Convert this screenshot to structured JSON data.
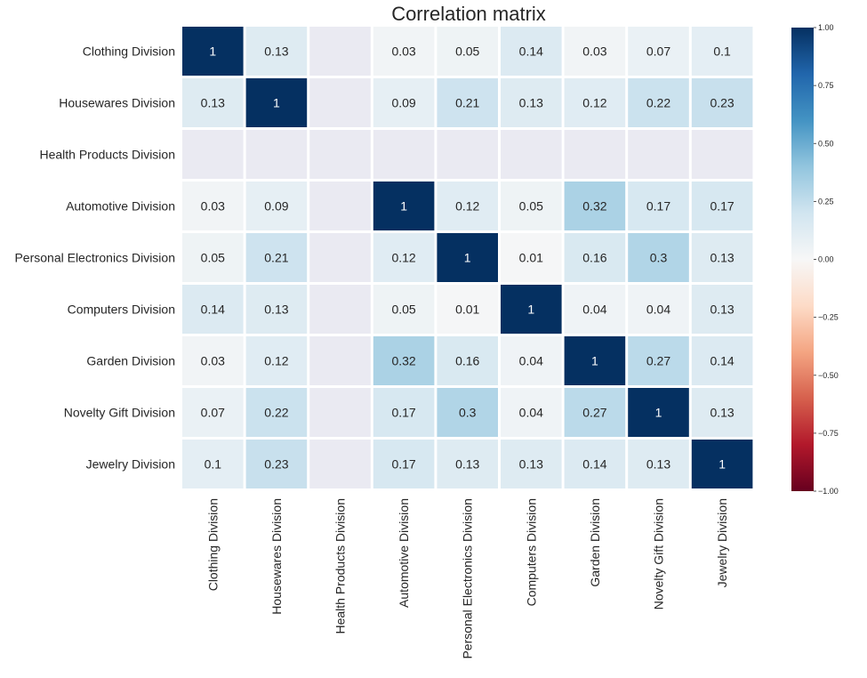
{
  "chart_data": {
    "type": "heatmap",
    "title": "Correlation matrix",
    "rows": [
      "Clothing Division",
      "Housewares Division",
      "Health Products Division",
      "Automotive Division",
      "Personal Electronics Division",
      "Computers Division",
      "Garden Division",
      "Novelty Gift Division",
      "Jewelry Division"
    ],
    "columns": [
      "Clothing Division",
      "Housewares Division",
      "Health Products Division",
      "Automotive Division",
      "Personal Electronics Division",
      "Computers Division",
      "Garden Division",
      "Novelty Gift Division",
      "Jewelry Division"
    ],
    "values": [
      [
        1,
        0.13,
        null,
        0.03,
        0.05,
        0.14,
        0.03,
        0.07,
        0.1
      ],
      [
        0.13,
        1,
        null,
        0.09,
        0.21,
        0.13,
        0.12,
        0.22,
        0.23
      ],
      [
        null,
        null,
        null,
        null,
        null,
        null,
        null,
        null,
        null
      ],
      [
        0.03,
        0.09,
        null,
        1,
        0.12,
        0.05,
        0.32,
        0.17,
        0.17
      ],
      [
        0.05,
        0.21,
        null,
        0.12,
        1,
        0.01,
        0.16,
        0.3,
        0.13
      ],
      [
        0.14,
        0.13,
        null,
        0.05,
        0.01,
        1,
        0.04,
        0.04,
        0.13
      ],
      [
        0.03,
        0.12,
        null,
        0.32,
        0.16,
        0.04,
        1,
        0.27,
        0.14
      ],
      [
        0.07,
        0.22,
        null,
        0.17,
        0.3,
        0.04,
        0.27,
        1,
        0.13
      ],
      [
        0.1,
        0.23,
        null,
        0.17,
        0.13,
        0.13,
        0.14,
        0.13,
        1
      ]
    ],
    "colorbar": {
      "vmin": -1,
      "vmax": 1,
      "ticks": [
        1,
        0.75,
        0.5,
        0.25,
        0,
        -0.25,
        -0.5,
        -0.75,
        -1
      ],
      "tick_labels": [
        "1.00",
        "0.75",
        "0.50",
        "0.25",
        "0.00",
        "−0.25",
        "−0.50",
        "−0.75",
        "−1.00"
      ],
      "colormap": "RdBu"
    },
    "colors": {
      "missing": "#eaeaf2",
      "cell_border": "#ffffff",
      "text_dark": "#262626",
      "text_light": "#ffffff"
    }
  }
}
